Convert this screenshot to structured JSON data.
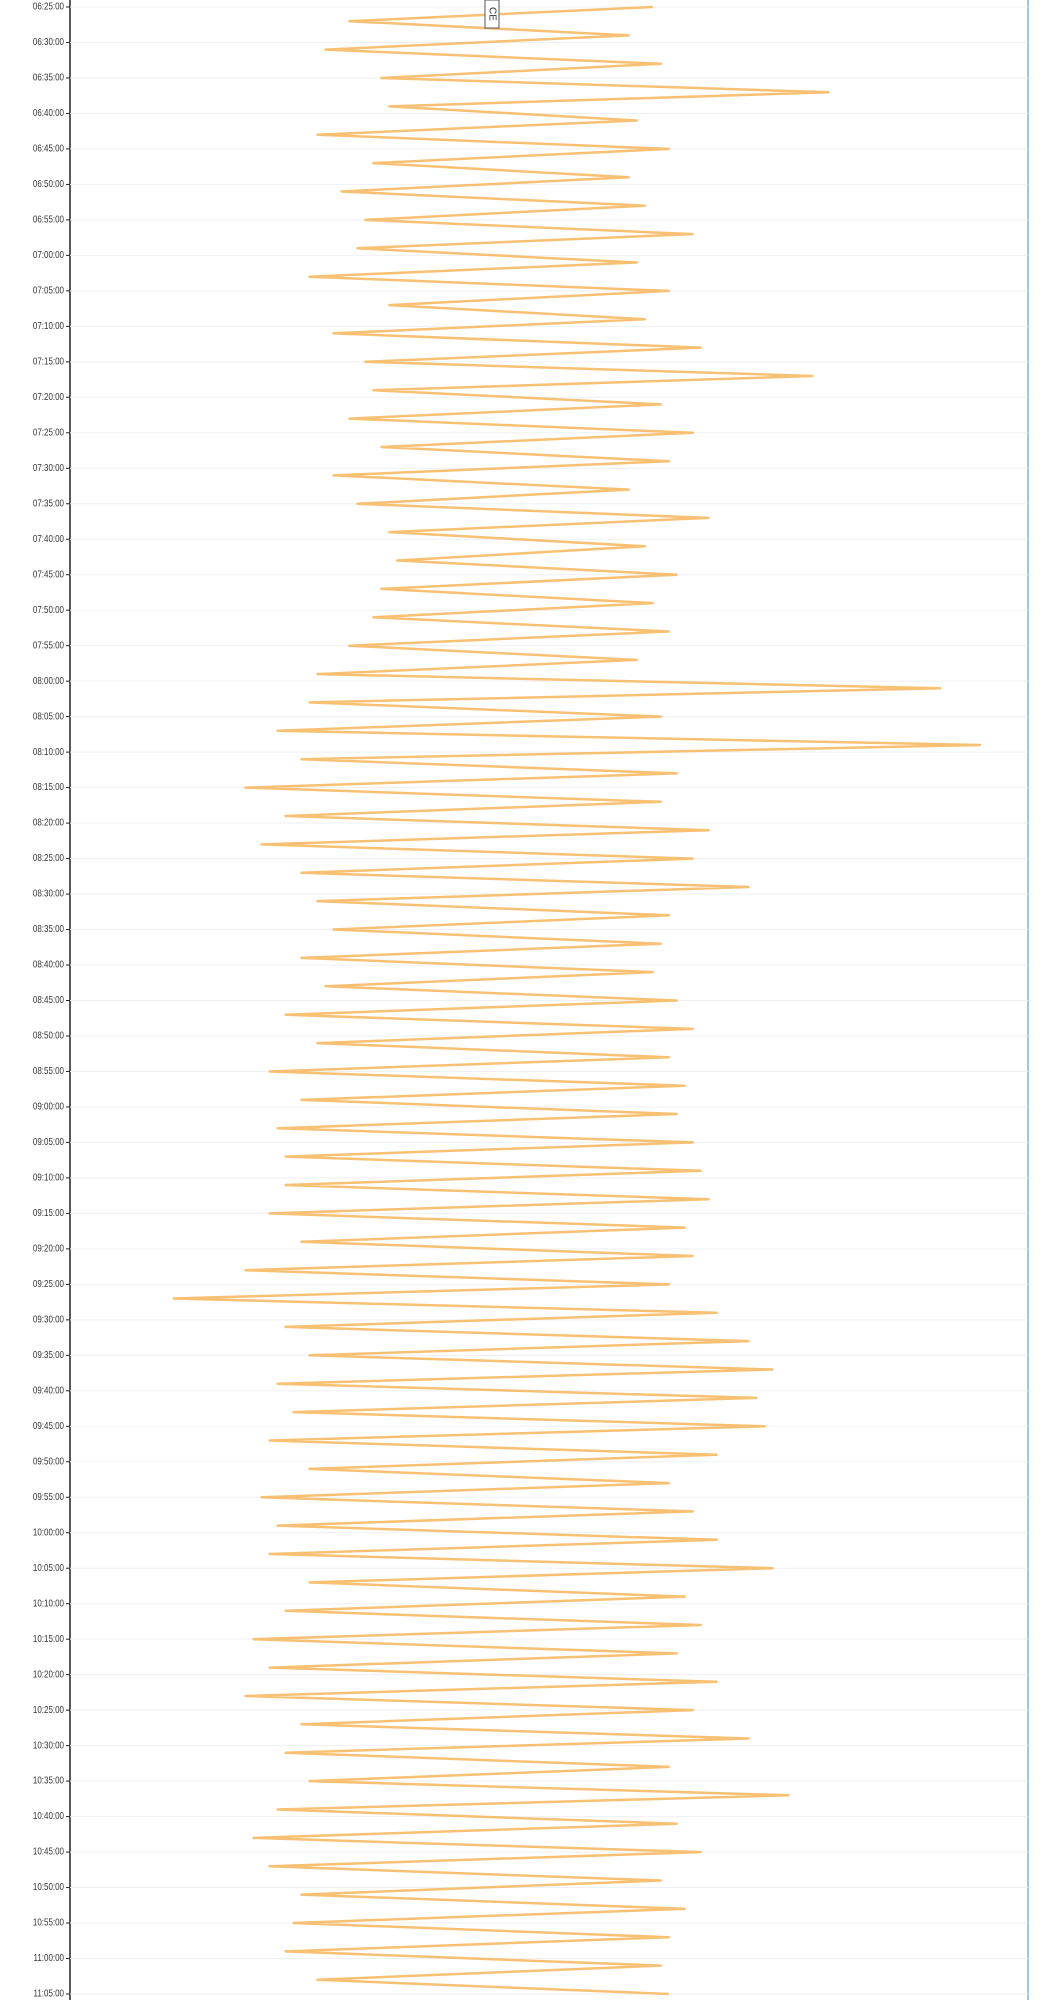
{
  "chart_data": {
    "type": "line",
    "orientation": "vertical",
    "annotation": "CE",
    "ylim": [
      "06:25:00",
      "11:05:00"
    ],
    "yticks": [
      "06:25:00",
      "06:30:00",
      "06:35:00",
      "06:40:00",
      "06:45:00",
      "06:50:00",
      "06:55:00",
      "07:00:00",
      "07:05:00",
      "07:10:00",
      "07:15:00",
      "07:20:00",
      "07:25:00",
      "07:30:00",
      "07:35:00",
      "07:40:00",
      "07:45:00",
      "07:50:00",
      "07:55:00",
      "08:00:00",
      "08:05:00",
      "08:10:00",
      "08:15:00",
      "08:20:00",
      "08:25:00",
      "08:30:00",
      "08:35:00",
      "08:40:00",
      "08:45:00",
      "08:50:00",
      "08:55:00",
      "09:00:00",
      "09:05:00",
      "09:10:00",
      "09:15:00",
      "09:20:00",
      "09:25:00",
      "09:30:00",
      "09:35:00",
      "09:40:00",
      "09:45:00",
      "09:50:00",
      "09:55:00",
      "10:00:00",
      "10:05:00",
      "10:10:00",
      "10:15:00",
      "10:20:00",
      "10:25:00",
      "10:30:00",
      "10:35:00",
      "10:40:00",
      "10:45:00",
      "10:50:00",
      "10:55:00",
      "11:00:00",
      "11:05:00"
    ],
    "xlim": [
      -550,
      650
    ],
    "grid": true,
    "series": [
      {
        "color": "#f7b55a",
        "x": [
          "06:25:00",
          "06:27:00",
          "06:29:00",
          "06:31:00",
          "06:33:00",
          "06:35:00",
          "06:37:00",
          "06:39:00",
          "06:41:00",
          "06:43:00",
          "06:45:00",
          "06:47:00",
          "06:49:00",
          "06:51:00",
          "06:53:00",
          "06:55:00",
          "06:57:00",
          "06:59:00",
          "07:01:00",
          "07:03:00",
          "07:05:00",
          "07:07:00",
          "07:09:00",
          "07:11:00",
          "07:13:00",
          "07:15:00",
          "07:17:00",
          "07:19:00",
          "07:21:00",
          "07:23:00",
          "07:25:00",
          "07:27:00",
          "07:29:00",
          "07:31:00",
          "07:33:00",
          "07:35:00",
          "07:37:00",
          "07:39:00",
          "07:41:00",
          "07:43:00",
          "07:45:00",
          "07:47:00",
          "07:49:00",
          "07:51:00",
          "07:53:00",
          "07:55:00",
          "07:57:00",
          "07:59:00",
          "08:01:00",
          "08:03:00",
          "08:05:00",
          "08:07:00",
          "08:09:00",
          "08:11:00",
          "08:13:00",
          "08:15:00",
          "08:17:00",
          "08:19:00",
          "08:21:00",
          "08:23:00",
          "08:25:00",
          "08:27:00",
          "08:29:00",
          "08:31:00",
          "08:33:00",
          "08:35:00",
          "08:37:00",
          "08:39:00",
          "08:41:00",
          "08:43:00",
          "08:45:00",
          "08:47:00",
          "08:49:00",
          "08:51:00",
          "08:53:00",
          "08:55:00",
          "08:57:00",
          "08:59:00",
          "09:01:00",
          "09:03:00",
          "09:05:00",
          "09:07:00",
          "09:09:00",
          "09:11:00",
          "09:13:00",
          "09:15:00",
          "09:17:00",
          "09:19:00",
          "09:21:00",
          "09:23:00",
          "09:25:00",
          "09:27:00",
          "09:29:00",
          "09:31:00",
          "09:33:00",
          "09:35:00",
          "09:37:00",
          "09:39:00",
          "09:41:00",
          "09:43:00",
          "09:45:00",
          "09:47:00",
          "09:49:00",
          "09:51:00",
          "09:53:00",
          "09:55:00",
          "09:57:00",
          "09:59:00",
          "10:01:00",
          "10:03:00",
          "10:05:00",
          "10:07:00",
          "10:09:00",
          "10:11:00",
          "10:13:00",
          "10:15:00",
          "10:17:00",
          "10:19:00",
          "10:21:00",
          "10:23:00",
          "10:25:00",
          "10:27:00",
          "10:29:00",
          "10:31:00",
          "10:33:00",
          "10:35:00",
          "10:37:00",
          "10:39:00",
          "10:41:00",
          "10:43:00",
          "10:45:00",
          "10:47:00",
          "10:49:00",
          "10:51:00",
          "10:53:00",
          "10:55:00",
          "10:57:00",
          "10:59:00",
          "11:01:00",
          "11:03:00",
          "11:05:00"
        ],
        "values": [
          180,
          -200,
          150,
          -230,
          190,
          -160,
          400,
          -150,
          160,
          -240,
          200,
          -170,
          150,
          -210,
          170,
          -180,
          230,
          -190,
          160,
          -250,
          200,
          -150,
          170,
          -220,
          240,
          -180,
          380,
          -170,
          190,
          -200,
          230,
          -160,
          200,
          -220,
          150,
          -190,
          250,
          -150,
          170,
          -140,
          210,
          -160,
          180,
          -170,
          200,
          -200,
          160,
          -240,
          540,
          -250,
          190,
          -290,
          590,
          -260,
          210,
          -330,
          190,
          -280,
          250,
          -310,
          230,
          -260,
          300,
          -240,
          200,
          -220,
          190,
          -260,
          180,
          -230,
          210,
          -280,
          230,
          -240,
          200,
          -300,
          220,
          -260,
          210,
          -290,
          230,
          -280,
          240,
          -280,
          250,
          -300,
          220,
          -260,
          230,
          -330,
          200,
          -420,
          260,
          -280,
          300,
          -250,
          330,
          -290,
          310,
          -270,
          320,
          -300,
          260,
          -250,
          200,
          -310,
          230,
          -290,
          260,
          -300,
          330,
          -250,
          220,
          -280,
          240,
          -320,
          210,
          -300,
          260,
          -330,
          230,
          -260,
          300,
          -280,
          200,
          -250,
          350,
          -290,
          210,
          -320,
          240,
          -300,
          190,
          -260,
          220,
          -270,
          200,
          -280,
          190,
          -240,
          200
        ]
      }
    ]
  }
}
